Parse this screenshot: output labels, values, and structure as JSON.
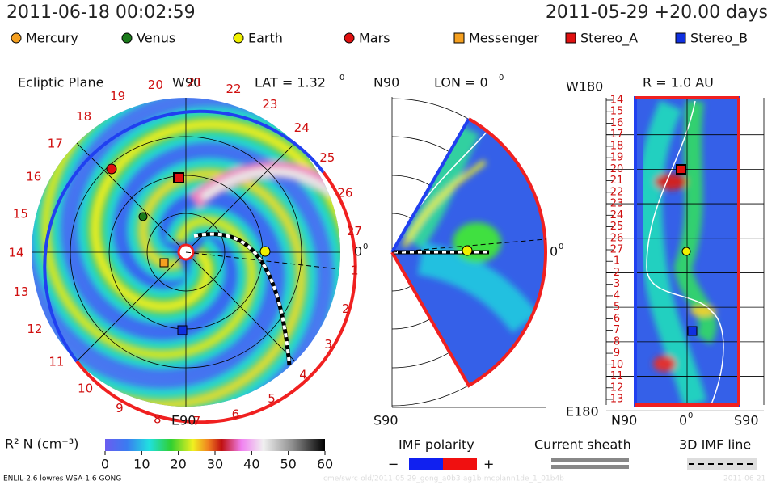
{
  "header": {
    "left": "2011-06-18 00:02:59",
    "right": "2011-05-29 +20.00 days"
  },
  "legend": [
    "Mercury",
    "Venus",
    "Earth",
    "Mars",
    "Messenger",
    "Stereo_A",
    "Stereo_B"
  ],
  "ecliptic": {
    "title": "Ecliptic Plane",
    "top": "W90",
    "lat": "LAT = 1.32",
    "lat_sup": "0",
    "bottom": "E90",
    "right": "0",
    "right_sup": "0",
    "carrington": [
      27,
      26,
      25,
      24,
      23,
      22,
      21,
      20,
      19,
      18,
      17,
      16,
      15,
      14,
      13,
      12,
      11,
      10,
      9,
      8,
      7,
      6,
      5,
      4,
      3,
      2,
      1
    ]
  },
  "meridional": {
    "top": "N90",
    "lon": "LON = 0",
    "lon_sup": "0",
    "bottom": "S90",
    "right": "0",
    "right_sup": "0"
  },
  "radial": {
    "top_left": "W180",
    "title": "R = 1.0 AU",
    "bottom_left": "E180",
    "rows": [
      14,
      15,
      16,
      17,
      18,
      19,
      20,
      21,
      22,
      23,
      24,
      25,
      26,
      27,
      1,
      2,
      3,
      4,
      5,
      6,
      7,
      8,
      9,
      10,
      11,
      12,
      13
    ],
    "x_labels": [
      "N90",
      "0",
      "S90"
    ],
    "x_sup": "0"
  },
  "colorbar": {
    "label": "R² N (cm⁻³)",
    "ticks": [
      0,
      10,
      20,
      30,
      40,
      50,
      60
    ]
  },
  "keys": {
    "imf": "IMF polarity",
    "minus": "−",
    "plus": "+",
    "sheath": "Current sheath",
    "line": "3D IMF line"
  },
  "footer": {
    "left": "ENLIL-2.6 lowres WSA-1.6 GONG",
    "path": "cme/swrc-old/2011-05-29_gong_a0b3-ag1b-mcplann1de_1_01b4b",
    "date": "2011-06-21"
  }
}
